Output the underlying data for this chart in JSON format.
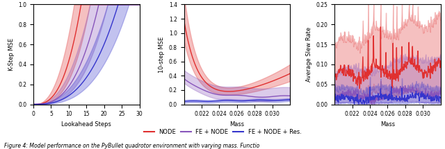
{
  "fig_width": 6.4,
  "fig_height": 2.15,
  "dpi": 100,
  "subplot1": {
    "xlabel": "Lookahead Steps",
    "ylabel": "K-Step MSE",
    "xlim": [
      0,
      30
    ],
    "ylim": [
      0,
      1.0
    ],
    "yticks": [
      0.0,
      0.2,
      0.4,
      0.6,
      0.8,
      1.0
    ],
    "xticks": [
      0,
      5,
      10,
      15,
      20,
      25,
      30
    ]
  },
  "subplot2": {
    "xlabel": "Mass",
    "ylabel": "10-step MSE",
    "xlim": [
      0.02,
      0.032
    ],
    "ylim": [
      0.0,
      1.4
    ],
    "yticks": [
      0.0,
      0.2,
      0.4,
      0.6,
      0.8,
      1.0,
      1.2,
      1.4
    ],
    "xticks": [
      0.022,
      0.024,
      0.026,
      0.028,
      0.03
    ]
  },
  "subplot3": {
    "xlabel": "Mass",
    "ylabel": "Average Slew Rate",
    "xlim": [
      0.02,
      0.032
    ],
    "ylim": [
      0.0,
      0.25
    ],
    "yticks": [
      0.0,
      0.05,
      0.1,
      0.15,
      0.2,
      0.25
    ],
    "xticks": [
      0.022,
      0.024,
      0.026,
      0.028,
      0.03
    ]
  },
  "colors": {
    "node": "#e03030",
    "fe_node": "#8855bb",
    "fe_node_res": "#3535cc"
  },
  "legend": {
    "labels": [
      "NODE",
      "FE + NODE",
      "FE + NODE + Res."
    ],
    "ncol": 3
  },
  "caption": "Figure 4: Model performance on the PyBullet quadrotor environment with varying mass. Functio"
}
